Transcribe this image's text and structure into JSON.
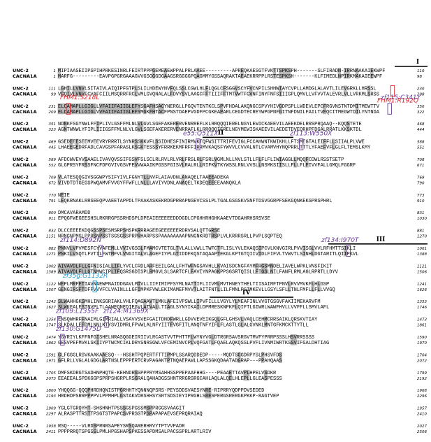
{
  "names": [
    "UNC-2",
    "CACNA1A"
  ],
  "blocks": [
    {
      "u": [
        1,
        110,
        "MIPIAASEIIPSPIHPRKESINRLFEIRTPPPGEMEAEWPPALPRLAAEE---------APREQKAESGTFVKTTSPKSPH-------SLFIRADN-IRRNAAKAIEKWPF"
      ],
      "c": [
        1,
        98,
        "MARFG---------EAVPGPGRGAAAGVVGSGGGDGAAGSRGGGGPQAGMMYGSSAQRAKTAEAEKRRPPLRSTESPKSH-------KLFIMEDLNPIRKMAKAIEEWPF"
      ]
    },
    {
      "u": [
        111,
        230,
        "LGHILLVNVLSITAIVLAIQIPFGTPLSLILHDEWYNVFQLSSLCGWLHLFLQGLCFSGGVSCYFVCNPILSHHWIAYCVPLLAMDGLALAVTLILEVGRKLLHRSSL"
      ],
      "c": [
        99,
        208,
        "VGQIVLVNVFCVAFCIILMSQRRFRCLVMLGVQNALALFDVYSVLAAGCFFTIIIFFTMTVWTFGVNFINYFNFSIIIGPLQMVLLVFVVTALEVRLVLLVRKMLSRSS"
      ]
    },
    {
      "u": [
        231,
        350,
        "ELCAMAPLLGIGLLVFAIIFAIIGLEFYSGAFHSACYNERGLLPGQVTENTKCLSPVFHDALAKQNGCSPVYHIVGDPSPLLWDEVLEPCFRGVNSTNTDMITMEWTTV"
      ],
      "c": [
        209,
        322,
        "ELCAMAPLLGIGLVVFAIIFAIIGLEFYMGKFHTACFPNSTDAEPVGDFPCGKEAPARLCEGDTECREYWPGPNFGITNFDNILFAILTVFQCITMEGWTDILYNTNDA"
      ]
    },
    {
      "u": [
        351,
        468,
        "NDNKFSGYNWLFFIPLIVLGSFFMLNLVLGVLSGEFAKERERVENRREFLKLRRQQQIERELNGYLEWICKAEEVILAEEKDELRRSPRQAAQ--KQQSTETE"
      ],
      "c": [
        323,
        444,
        "AGNTWNWLYFIPLIIIGSFFMLNLVLGVLSGEFAKERERVENRRAFLKLRRQQQIERELNGYMEWISKAEEVILAEDETDVEQRHPFDGALRRATLKKSKTDL"
      ]
    },
    {
      "u": [
        469,
        588,
        "GSEDEEESEEMVEEVRYRRRTLSYNRSSKKVFLSSIDHESFINIRMVKTQFWSITTRIFEVIGLFCCAHWNTKWIKHLLFTSMEGTALEIFFLLSIIALPLVWE"
      ],
      "c": [
        445,
        551,
        "LHAEEGEDRFADLCAVGSPFARASLKSGKTESSSYFRRKEKMFRFFIRRMVKAQSFYWVVLCVVALNTLCVAMVHYNQPRRLTTTLYFAEFVFLGLFLTEMSLKMY"
      ]
    },
    {
      "u": [
        589,
        708,
        "AFDCWVEVVSAAELIVAVQVSSIFGSVFSLSCLRLRVLRLVRLFRSLRLFSRLVGMLNLLNVLSTLLFLFLFLIWIAGGLLMQQFCDWLRSSTSETP"
      ],
      "c": [
        552,
        671,
        "GLGPRSYFRSSFNCFDFGVIVGSVFEVVWAAIKPGSSFGISVLRALRLLRIFKVTKYWSSLRNLVVSLLNSMKSIISLLFLLFLFIVVFALLGMQLFGGRF"
      ]
    },
    {
      "u": [
        709,
        769,
        "VLATESQQGIVSGGWPYSIFYIVLFGNYTLLNVFLAIAVDNLANAQELTAAEEADEKA"
      ],
      "c": [
        672,
        790,
        "VIVDTDTGEGSPWQAMVFVVGYFFWFLLNLLLAVIYVDNLANAQELTKDEQEEEEAANQKLA"
      ]
    },
    {
      "u": [
        770,
        773,
        "NEIE"
      ],
      "c": [
        791,
        910,
        "LEQKRNAKLRRSEEQPVAEETAPPDLTPAAKASKEKRDGPRRAPNGEVCSSLPLTGALGSGSKVSNFTDSVGGRPFSEKGQNKEKSPRSPHRL"
      ]
    },
    {
      "u": [
        800,
        831,
        "DMCAVARAMDD"
      ],
      "c": [
        911,
        1030,
        "EPQGFWEGEESHSLRKRRGPSSRHDSPLDPEAIEEEEEEDDDGDLCPGHHRHGHKAAEVTDGAHRHSRSVSE"
      ]
    },
    {
      "u": [
        832,
        881,
        "DLCCEEEEKDQGSSPSESMSRPSHSPKRRRAGEEGEEEEEERDRVSALQTTGRSE"
      ],
      "c": [
        1151,
        1270,
        "NRNGNPMSLPPRSNPSSTSGSGSSPRPRHARPSSPAAAAAAAAPNNGNKRDTRSPLVLKRRRSRLLPVPLSQPTEQ"
      ]
    },
    {
      "u": [
        882,
        1001,
        "PNNVLVPVMESFCYVAFEMLLVVIVGSGLFMAMCVTETGLTVLALLVWLLTWFCTFLISLYVLEKAQSIPCVLKNVGIRLPVVISGLVVLRFHMTTSIKLI"
      ],
      "c": [
        1271,
        1388,
        "PNKILVSQTLFVTILFWTMFVLVNGITALVLAGEFIYPLGTIDDFKQSTAQAAPTEKGLKPTGTQIIVIDLFIFVLTVWVTLSINHLDGTARITLQIIPKVL"
      ]
    },
    {
      "u": [
        1002,
        1121,
        "AIVAVDLFLLGFNISIALLIFLYVCLCRDLARFEEILGALLFHTWFNGSAVHLLKVAISDCNGFAYMFRGSMNDELIAVELWPKLVNSFIKIT"
      ],
      "c": [
        1389,
        1506,
        "AIVAVDLFLLGTNMWCIPLIFQSRSGDISPLRMGVLSLSARTCFLFAVIYNPAGKPPSGSRTQISLLFIGSLNILFANFLRMLAGLRPRTLLDYV"
      ]
    },
    {
      "u": [
        1122,
        1241,
        "WEPLMRFFTIAVNAEWPNAIDDGAVLMIVLLIIFIMIPFSYMLNATTIFLIIVMLMVTHNEYTHELTIISAIMFTPNVLRVVMVKFLHLGSP"
      ],
      "c": [
        1507,
        1626,
        "GENGIRSFTDFFVVVFCLVAINLLLGFIMPKFVWLEKIMAMEFMVVTLAITFNTLLILFMNLPSIMKEVLLGSYLSFLLTNLFMFLLFLLVVGQ"
      ]
    },
    {
      "u": [
        1242,
        1353,
        "SLWAHHGKSMHLINKSGRIAKLVHLFQAGAAVTLMKLAFEIVPSWLLIPVFILLLVGYLYLMEAFINLVVGTGSGVFAKIIMEKARVFM"
      ],
      "c": [
        1627,
        1746,
        "SLWKFALFSTNVPLTLAAWEQNEDIEGVLATVALLTIAGLSYNYIKAILDPMRESKNPKFLQIFTLGIWRLWAWFHVLLVVFFLLSMVLAFL"
      ]
    },
    {
      "u": [
        1354,
        1473,
        "ENSQWHRFFNAIMLGIMRIALLVSAVVSVEFGAITDNDFWRLLGDVVEVEIKGQLGFLGHSVLVAQLCEHMCRRSAIKLQRSKVTIAY"
      ],
      "c": [
        1747,
        1861,
        "SLKDALLEFDMLNNLKTYSVIDMRLFPVWLALNFYIITFVGFITLANQTNFYIFLFLASTLGLALGVNKLMNTGFKMCKTTYTLL"
      ]
    },
    {
      "u": [
        1474,
        1590,
        "YGYRIYLKFFNFGISHELNRASQGGEIRIIVLRCASTVVTPHTTFLWYNYVGLDTRGRSAVSRGVTMVFYPRRPSSSLHSVRRSSSS"
      ],
      "c": [
        1862,
        1970,
        "GESVPEFMVKLSKIIYPTWCMCIKLDRYSNRSGWLVFCEMINVCPLVQFGATLFQAELAQKQSSLPVFLIVNMIWRTKSSVIFGALDHTIAG"
      ]
    },
    {
      "u": [
        1591,
        1704,
        "GLFGGGLRSVKAAKAAESQ---HSSHTPQPERTFTTIPMPLSSARQDDEDP-----MQDTSGGDRPYSLPHSVFDS"
      ],
      "c": [
        1971,
        2072,
        "GFLRLLVGLALGDGLARTNSLEPPPERTCRVPAGAKTPTNQAEPAWLLAPSSGKQDAATADGRAP---PPAHQAAS"
      ]
    },
    {
      "u": [
        1705,
        1799,
        "DMFSKDRGTSADHNPHQTE-KEHNDRGSPPPRYMSAHHSSPPEPAAFHHG----PEAAETTAVPLHPELVSDKR"
      ],
      "c": [
        2073,
        2192,
        "EEAEEALSPDKGGPSPRPSHGRPLRSGRALQAHADGSSHNTRRGRGRGCAHLAQLALQELHLEPLLGLEASPESSS"
      ]
    },
    {
      "u": [
        1800,
        1908,
        "YHQQGG-QQQPHRDHQNISTPGRHHTYQNNNQPSRS-PEYSDDSVAESYNRE-RIPRRYQDPPDVSEDED"
      ],
      "c": [
        2193,
        2296,
        "HRDHDPSRRPPPPVLPPMHPLGSTAKVDRSHHSYSRTSDSIEYIPRGHLSRESPERGSRERGKPKKP-RAGTVEP"
      ]
    },
    {
      "u": [
        1909,
        1957,
        "YGLGTGRQYHT-SHSHNHTPSSSGSPGSSMSPPRGGSVAAGIT"
      ],
      "c": [
        2297,
        2410,
        "ALRASPTTRSTTPSGTSTPAPCSVPRSGTPSPAPAPAEVSEPRQRAIAQ"
      ]
    },
    {
      "u": [
        1958,
        2027,
        "RSQ-----VLRDSPRNRSAPEYSRSQARERHRVYTPTVVPADR"
      ],
      "c": [
        2411,
        2506,
        "PPPPRRQTSPGSSLPMLHPGSHAPSPKESSAPDMSALPACSSPRLARTLRIV"
      ]
    }
  ],
  "annotations": [
    {
      "text": "FHM1:R192Q",
      "color": "#e0202a"
    },
    {
      "text": "FHM1:S218L",
      "color": "#e0202a"
    },
    {
      "text": "zf115:C341Y",
      "color": "#6a3d9a"
    },
    {
      "text": "e55:Q511X",
      "color": "#6a3d9a"
    },
    {
      "text": "zf113:W550X",
      "color": "#6a3d9a"
    },
    {
      "text": "zf114:D892N",
      "color": "#6a3d9a"
    },
    {
      "text": "zf134:I970T",
      "color": "#6a3d9a"
    },
    {
      "text": "zf35g:G1132R",
      "color": "#1f9bcf"
    },
    {
      "text": "zf109:L1355F",
      "color": "#6a3d9a"
    },
    {
      "text": "zf124:M1369X",
      "color": "#6a3d9a"
    },
    {
      "text": "zf130:G1475D",
      "color": "#6a3d9a"
    }
  ],
  "domains": [
    "I",
    "II",
    "III",
    "IV"
  ]
}
